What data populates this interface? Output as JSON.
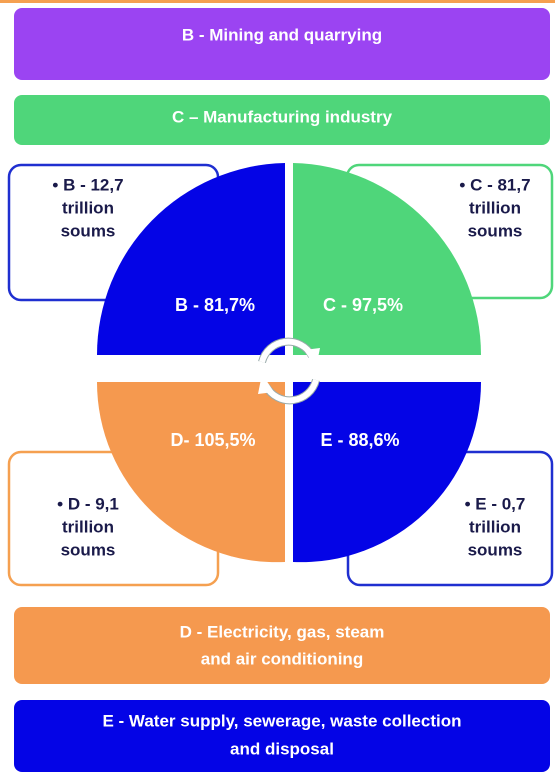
{
  "sectors": [
    {
      "title": [
        "B - Mining and quarrying"
      ],
      "share": "B - 81,7%",
      "amount": [
        "• B - 12,7",
        "trillion",
        "soums"
      ]
    },
    {
      "title": [
        "C – Manufacturing industry"
      ],
      "share": "C - 97,5%",
      "amount": [
        "• C - 81,7",
        "trillion",
        "soums"
      ]
    },
    {
      "title": [
        "D - Electricity, gas, steam",
        "and air conditioning"
      ],
      "share": "D- 105,5%",
      "amount": [
        "• D - 9,1",
        "trillion",
        "soums"
      ]
    },
    {
      "title": [
        "E - Water supply, sewerage, waste collection",
        "and disposal"
      ],
      "share": "E - 88,6%",
      "amount": [
        "• E - 0,7",
        "trillion",
        "soums"
      ]
    }
  ]
}
